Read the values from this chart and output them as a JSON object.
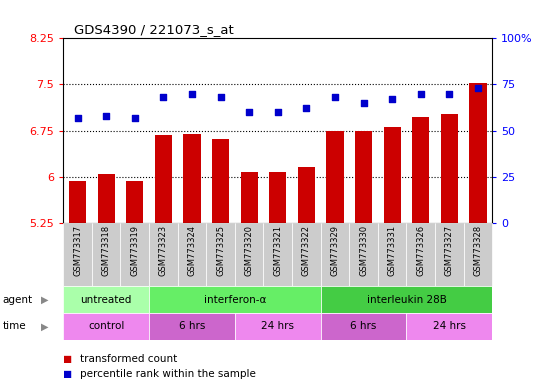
{
  "title": "GDS4390 / 221073_s_at",
  "samples": [
    "GSM773317",
    "GSM773318",
    "GSM773319",
    "GSM773323",
    "GSM773324",
    "GSM773325",
    "GSM773320",
    "GSM773321",
    "GSM773322",
    "GSM773329",
    "GSM773330",
    "GSM773331",
    "GSM773326",
    "GSM773327",
    "GSM773328"
  ],
  "transformed_count": [
    5.93,
    6.05,
    5.93,
    6.68,
    6.7,
    6.62,
    6.07,
    6.07,
    6.15,
    6.75,
    6.75,
    6.8,
    6.97,
    7.02,
    7.52
  ],
  "percentile_rank": [
    57,
    58,
    57,
    68,
    70,
    68,
    60,
    60,
    62,
    68,
    65,
    67,
    70,
    70,
    73
  ],
  "ylim_left": [
    5.25,
    8.25
  ],
  "ylim_right": [
    0,
    100
  ],
  "yticks_left": [
    5.25,
    6.0,
    6.75,
    7.5,
    8.25
  ],
  "yticks_left_labels": [
    "5.25",
    "6",
    "6.75",
    "7.5",
    "8.25"
  ],
  "yticks_right": [
    0,
    25,
    50,
    75,
    100
  ],
  "yticks_right_labels": [
    "0",
    "25",
    "50",
    "75",
    "100%"
  ],
  "bar_color": "#cc0000",
  "dot_color": "#0000cc",
  "bar_width": 0.6,
  "agent_groups": [
    {
      "label": "untreated",
      "start": 0,
      "end": 3,
      "color": "#aaffaa"
    },
    {
      "label": "interferon-α",
      "start": 3,
      "end": 9,
      "color": "#66ee66"
    },
    {
      "label": "interleukin 28B",
      "start": 9,
      "end": 15,
      "color": "#44cc44"
    }
  ],
  "time_groups": [
    {
      "label": "control",
      "start": 0,
      "end": 3,
      "color": "#ee88ee"
    },
    {
      "label": "6 hrs",
      "start": 3,
      "end": 6,
      "color": "#cc66cc"
    },
    {
      "label": "24 hrs",
      "start": 6,
      "end": 9,
      "color": "#ee88ee"
    },
    {
      "label": "6 hrs",
      "start": 9,
      "end": 12,
      "color": "#cc66cc"
    },
    {
      "label": "24 hrs",
      "start": 12,
      "end": 15,
      "color": "#ee88ee"
    }
  ],
  "legend_items": [
    {
      "label": "transformed count",
      "color": "#cc0000"
    },
    {
      "label": "percentile rank within the sample",
      "color": "#0000cc"
    }
  ]
}
